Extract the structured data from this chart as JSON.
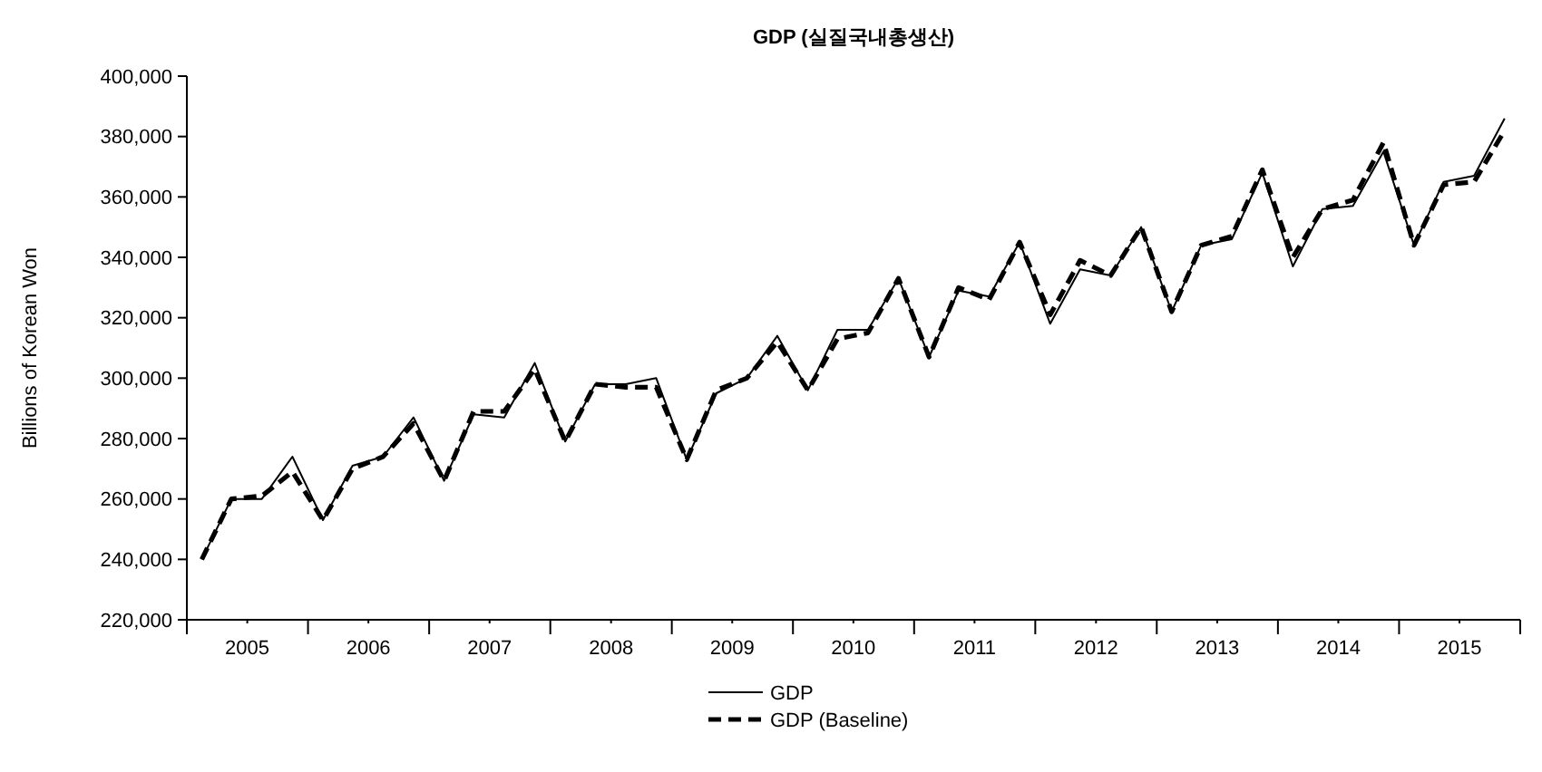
{
  "chart_data": {
    "type": "line",
    "title": "GDP (실질국내총생산)",
    "ylabel": "Billions of Korean Won",
    "x": [
      "2005-02-15",
      "2005-05-15",
      "2005-08-15",
      "2005-11-15",
      "2006-02-15",
      "2006-05-15",
      "2006-08-15",
      "2006-11-15",
      "2007-02-15",
      "2007-05-15",
      "2007-08-15",
      "2007-11-15",
      "2008-02-15",
      "2008-05-15",
      "2008-08-15",
      "2008-11-15",
      "2009-02-15",
      "2009-05-15",
      "2009-08-15",
      "2009-11-15",
      "2010-02-15",
      "2010-05-15",
      "2010-08-15",
      "2010-11-15",
      "2011-02-15",
      "2011-05-15",
      "2011-08-15",
      "2011-11-15",
      "2012-02-15",
      "2012-05-15",
      "2012-08-15",
      "2012-11-15",
      "2013-02-15",
      "2013-05-15",
      "2013-08-15",
      "2013-11-15",
      "2014-02-15",
      "2014-05-15",
      "2014-08-15",
      "2014-11-15",
      "2015-02-15",
      "2015-05-15",
      "2015-08-15",
      "2015-11-15"
    ],
    "series": [
      {
        "name": "GDP",
        "color": "#000000",
        "line_style": "solid",
        "values": [
          240000,
          260000,
          260000,
          274000,
          253000,
          271000,
          274000,
          287000,
          266000,
          288000,
          287000,
          305000,
          279000,
          298000,
          298000,
          300000,
          273000,
          295000,
          300000,
          314000,
          296000,
          316000,
          316000,
          333000,
          307000,
          329000,
          327000,
          345000,
          318000,
          336000,
          334000,
          350000,
          322000,
          344000,
          346000,
          368000,
          337000,
          356000,
          357000,
          375000,
          344000,
          365000,
          367000,
          386000
        ]
      },
      {
        "name": "GDP (Baseline)",
        "color": "#000000",
        "line_style": "dashed",
        "values": [
          240000,
          260000,
          261000,
          269000,
          253000,
          270000,
          274000,
          285000,
          266000,
          289000,
          289000,
          303000,
          279000,
          298000,
          297000,
          297000,
          273000,
          296000,
          300000,
          312000,
          296000,
          313000,
          315000,
          333000,
          307000,
          330000,
          326000,
          345000,
          321000,
          339000,
          334000,
          350000,
          322000,
          344000,
          347000,
          369000,
          340000,
          356000,
          359000,
          378000,
          344000,
          364000,
          365000,
          382000
        ]
      }
    ],
    "xlim": [
      "2005-01-01",
      "2016-01-01"
    ],
    "xticks": [
      {
        "value": "2005-01-01",
        "label": null
      },
      {
        "value": "2005-07-02",
        "label": "2005"
      },
      {
        "value": "2006-01-01",
        "label": null
      },
      {
        "value": "2006-07-02",
        "label": "2006"
      },
      {
        "value": "2007-01-01",
        "label": null
      },
      {
        "value": "2007-07-02",
        "label": "2007"
      },
      {
        "value": "2008-01-01",
        "label": null
      },
      {
        "value": "2008-07-02",
        "label": "2008"
      },
      {
        "value": "2009-01-01",
        "label": null
      },
      {
        "value": "2009-07-02",
        "label": "2009"
      },
      {
        "value": "2010-01-01",
        "label": null
      },
      {
        "value": "2010-07-02",
        "label": "2010"
      },
      {
        "value": "2011-01-01",
        "label": null
      },
      {
        "value": "2011-07-02",
        "label": "2011"
      },
      {
        "value": "2012-01-01",
        "label": null
      },
      {
        "value": "2012-07-02",
        "label": "2012"
      },
      {
        "value": "2013-01-01",
        "label": null
      },
      {
        "value": "2013-07-02",
        "label": "2013"
      },
      {
        "value": "2014-01-01",
        "label": null
      },
      {
        "value": "2014-07-02",
        "label": "2014"
      },
      {
        "value": "2015-01-01",
        "label": null
      },
      {
        "value": "2015-07-02",
        "label": "2015"
      },
      {
        "value": "2016-01-01",
        "label": null
      }
    ],
    "ylim": [
      220000,
      400000
    ],
    "yticks": [
      {
        "value": 220000,
        "label": "220,000"
      },
      {
        "value": 240000,
        "label": "240,000"
      },
      {
        "value": 260000,
        "label": "260,000"
      },
      {
        "value": 280000,
        "label": "280,000"
      },
      {
        "value": 300000,
        "label": "300,000"
      },
      {
        "value": 320000,
        "label": "320,000"
      },
      {
        "value": 340000,
        "label": "340,000"
      },
      {
        "value": 360000,
        "label": "360,000"
      },
      {
        "value": 380000,
        "label": "380,000"
      },
      {
        "value": 400000,
        "label": "400,000"
      }
    ],
    "grid": false,
    "legend": "bottom",
    "marker": "none"
  }
}
